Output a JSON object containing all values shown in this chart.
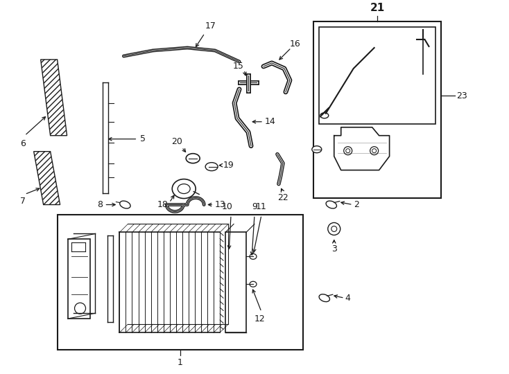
{
  "background_color": "#ffffff",
  "line_color": "#1a1a1a",
  "fig_width": 7.34,
  "fig_height": 5.4,
  "dpi": 100,
  "label_fontsize": 9,
  "title_fontsize": 10
}
